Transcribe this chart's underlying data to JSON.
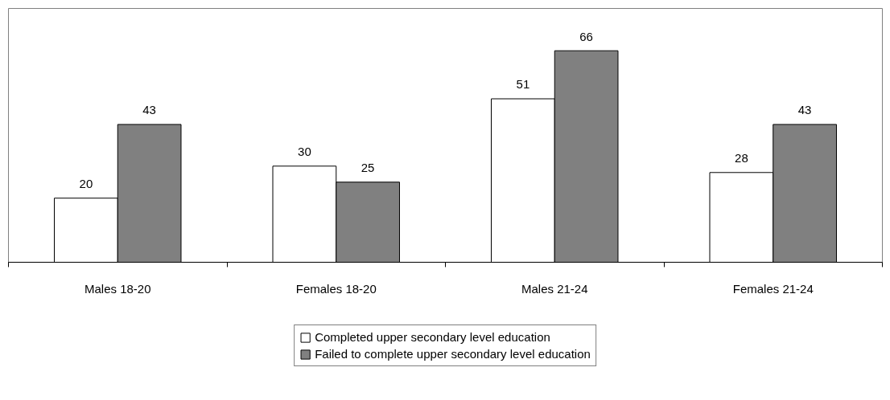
{
  "chart_data": {
    "type": "bar",
    "categories": [
      "Males 18-20",
      "Females 18-20",
      "Males 21-24",
      "Females 21-24"
    ],
    "series": [
      {
        "name": "Completed upper secondary level education",
        "color": "#ffffff",
        "values": [
          20,
          30,
          51,
          28
        ]
      },
      {
        "name": "Failed to complete upper secondary level education",
        "color": "#808080",
        "values": [
          43,
          25,
          66,
          43
        ]
      }
    ],
    "data_labels": true,
    "legend": "bottom"
  }
}
